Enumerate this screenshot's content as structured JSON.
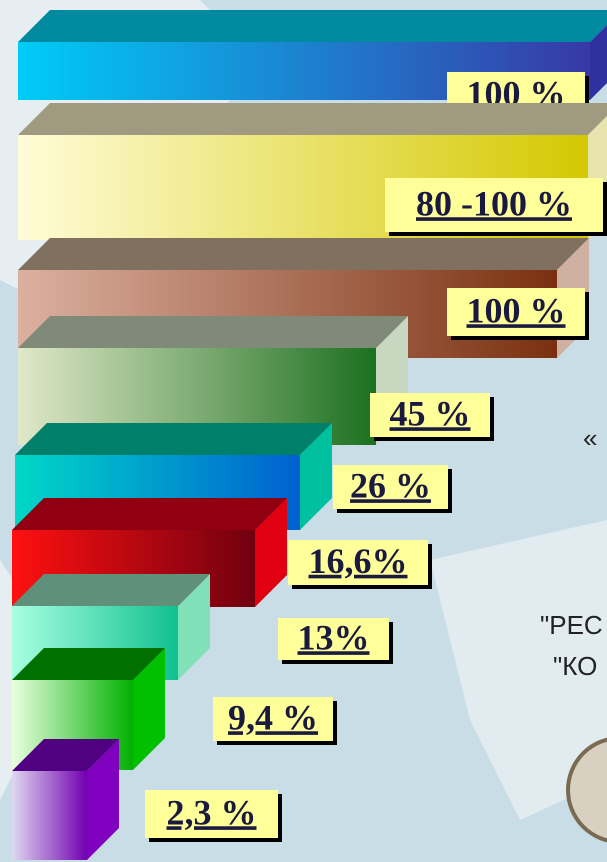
{
  "bars": [
    {
      "label": "100 %"
    },
    {
      "label": "80 -100 %"
    },
    {
      "label": "100 %"
    },
    {
      "label": "45 %"
    },
    {
      "label": "26 %"
    },
    {
      "label": "16,6%"
    },
    {
      "label": "13%"
    },
    {
      "label": "9,4 %"
    },
    {
      "label": "2,3 %"
    }
  ],
  "side_texts": [
    "«",
    "\"РЕС",
    "\"КО"
  ]
}
